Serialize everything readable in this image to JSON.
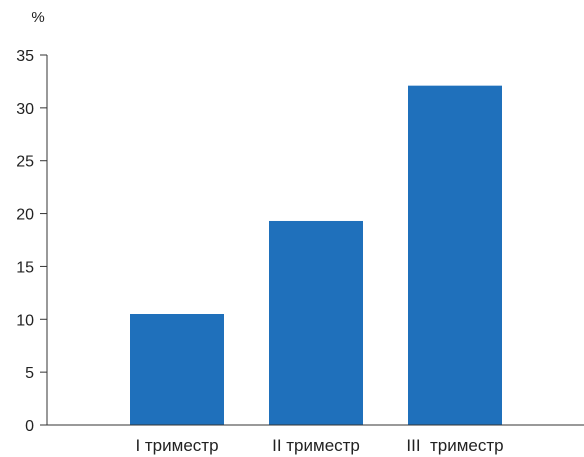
{
  "chart_data": {
    "type": "bar",
    "title": "",
    "xlabel": "",
    "ylabel": "%",
    "categories": [
      "I триместр",
      "II триместр",
      "III  триместр"
    ],
    "values": [
      10.5,
      19.3,
      32.1
    ],
    "ylim": [
      0,
      35
    ],
    "yticks": [
      0,
      5,
      10,
      15,
      20,
      25,
      30,
      35
    ],
    "grid": false,
    "legend": "none",
    "bar_color": "#1f70bb"
  }
}
